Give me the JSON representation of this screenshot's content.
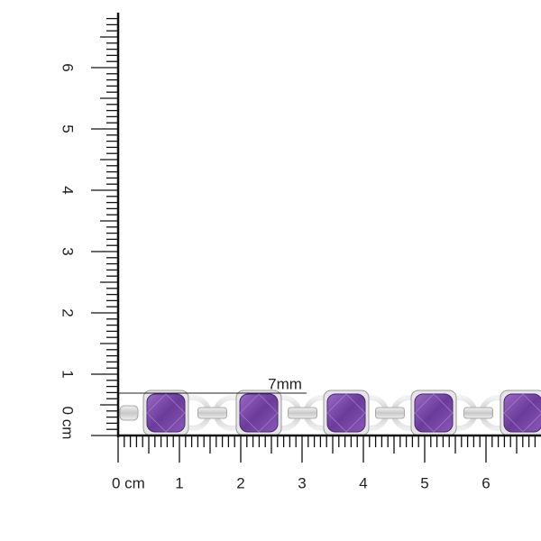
{
  "annotation": "7mm",
  "ruler_x": {
    "labels": [
      "0 cm",
      "1",
      "2",
      "3",
      "4",
      "5",
      "6"
    ]
  },
  "ruler_y": {
    "labels": [
      "0 cm",
      "1",
      "2",
      "3",
      "4",
      "5",
      "6"
    ]
  }
}
